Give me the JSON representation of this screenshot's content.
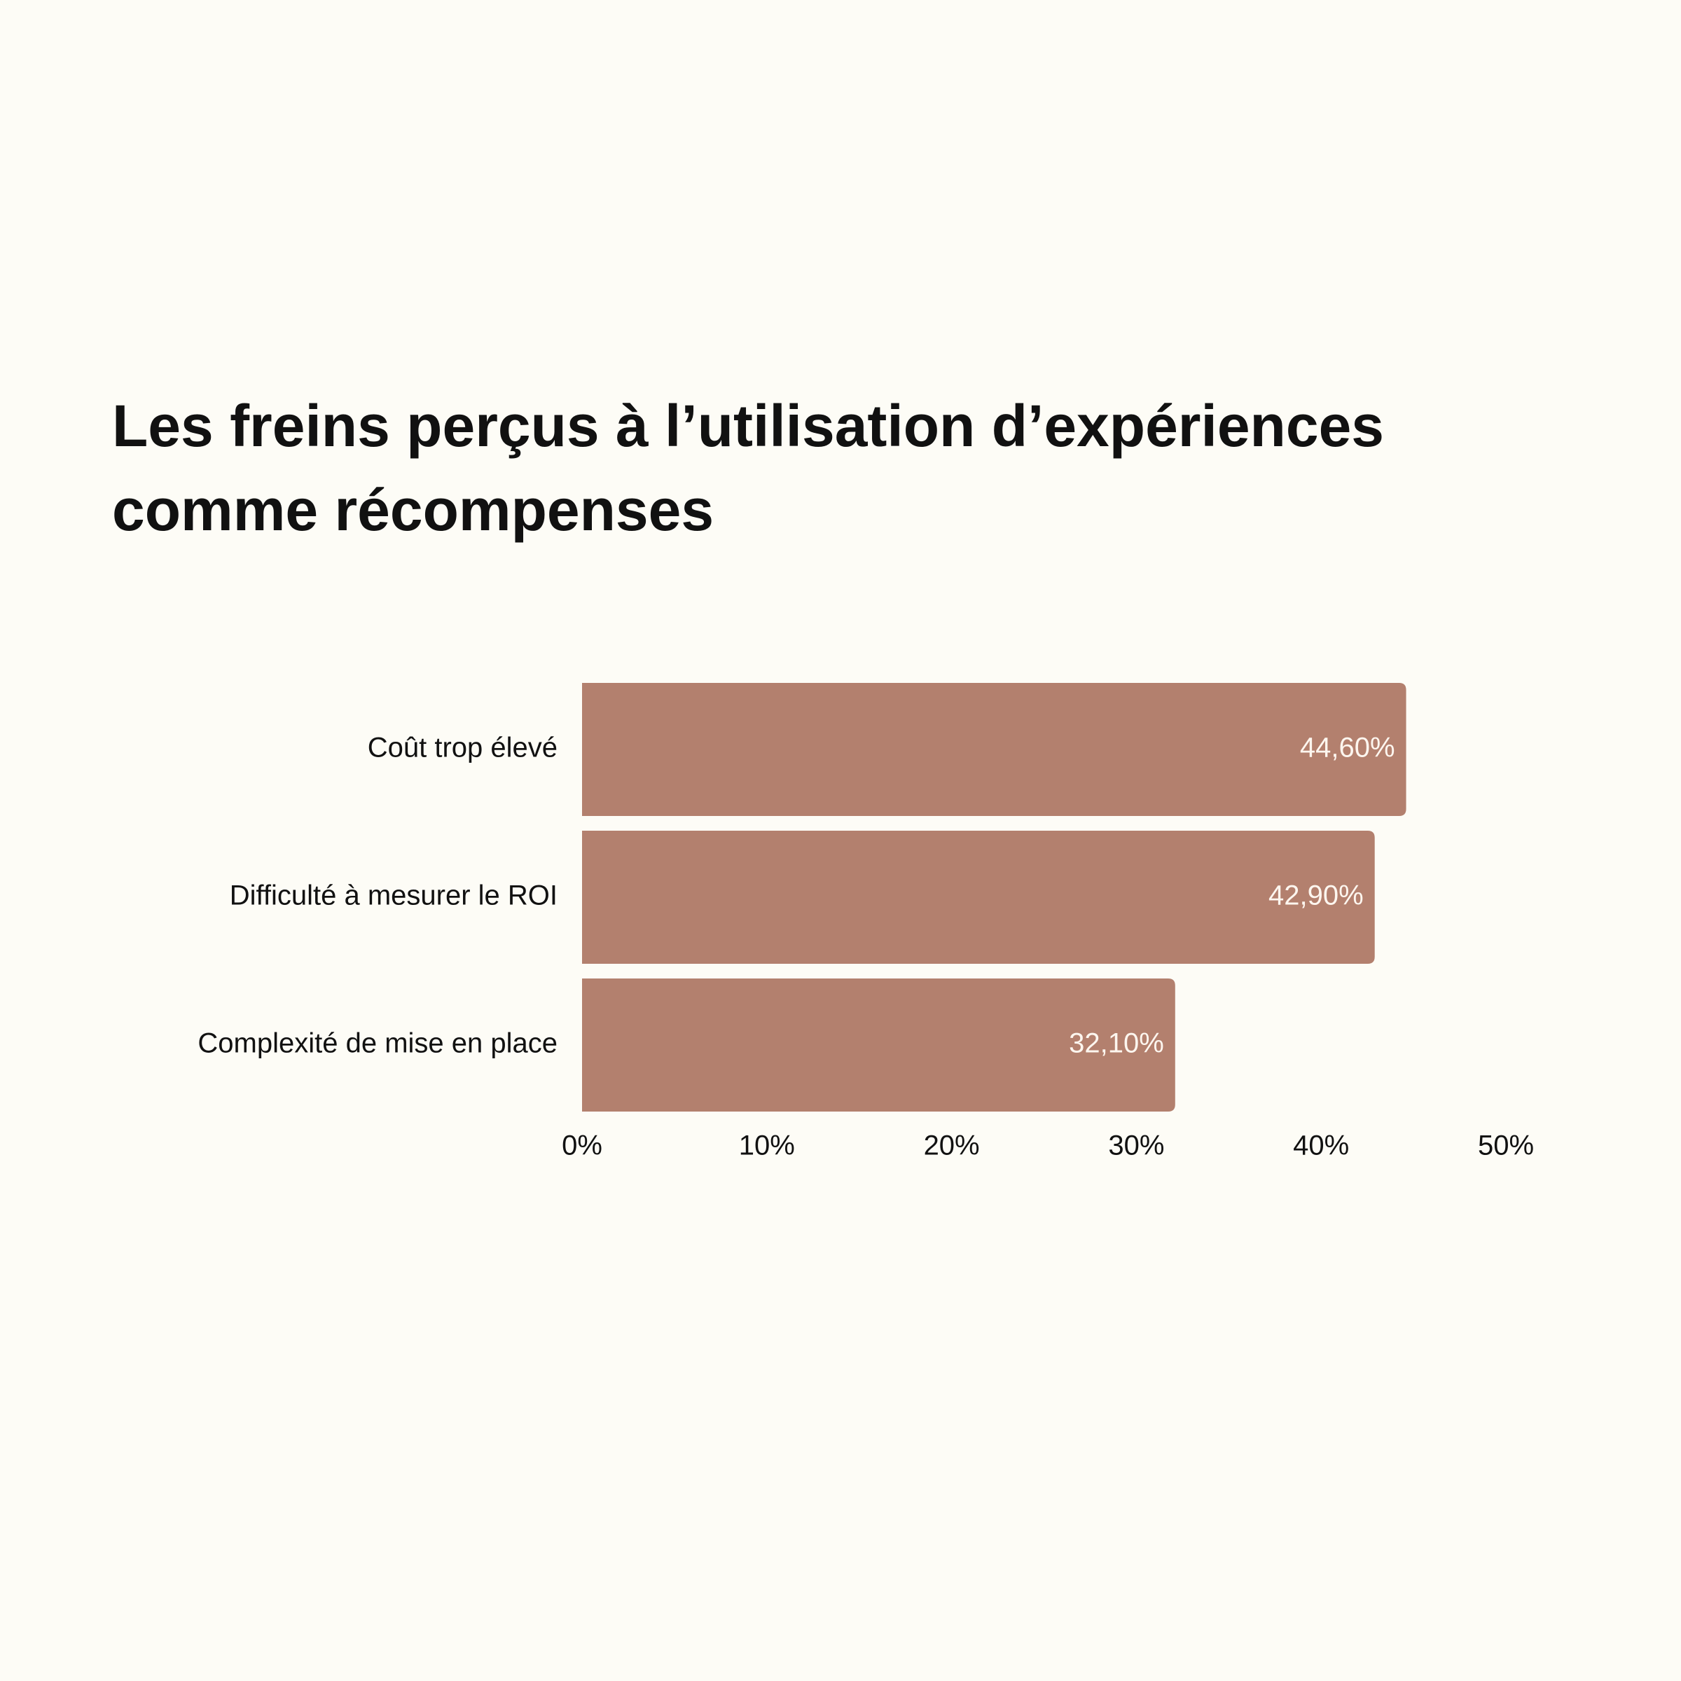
{
  "chart_data": {
    "type": "bar",
    "orientation": "horizontal",
    "title": "Les freins perçus à l’utilisation d’expériences comme récompenses",
    "categories": [
      "Coût trop élevé",
      "Difficulté à mesurer le ROI",
      "Complexité de mise en place"
    ],
    "values": [
      44.6,
      42.9,
      32.1
    ],
    "value_labels": [
      "44,60%",
      "42,90%",
      "32,10%"
    ],
    "color": "#b3806e",
    "xlim": [
      0,
      50
    ],
    "xticks": [
      {
        "value": 0,
        "label": "0%"
      },
      {
        "value": 10,
        "label": "10%"
      },
      {
        "value": 20,
        "label": "20%"
      },
      {
        "value": 30,
        "label": "30%"
      },
      {
        "value": 40,
        "label": "40%"
      },
      {
        "value": 50,
        "label": "50%"
      }
    ],
    "grid": false
  }
}
